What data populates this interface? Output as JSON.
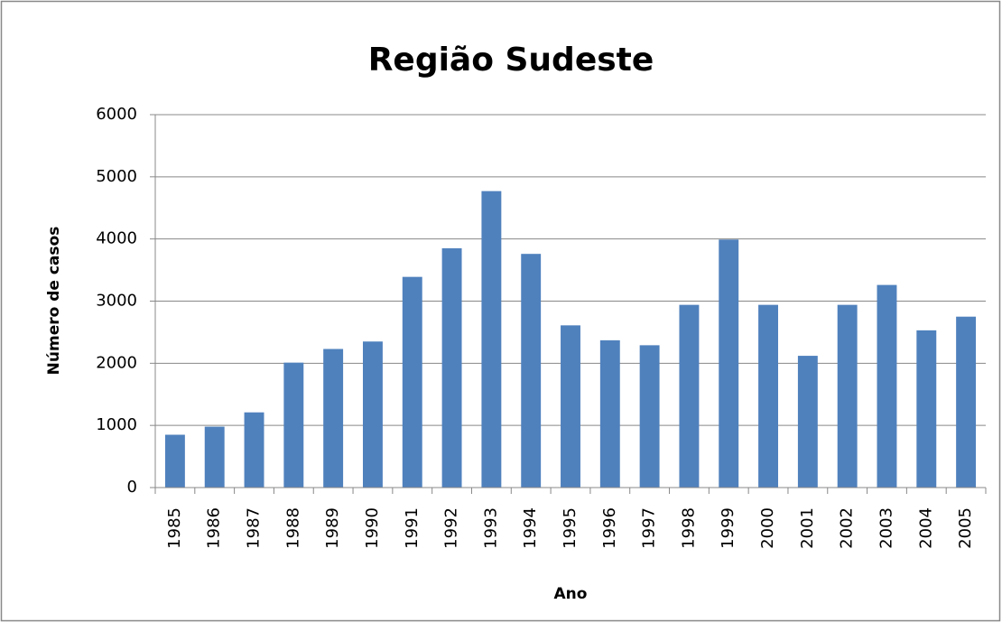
{
  "chart_data": {
    "type": "bar",
    "title": "Região Sudeste",
    "x_label": "Ano",
    "y_label": "Número de casos",
    "categories": [
      "1985",
      "1986",
      "1987",
      "1988",
      "1989",
      "1990",
      "1991",
      "1992",
      "1993",
      "1994",
      "1995",
      "1996",
      "1997",
      "1998",
      "1999",
      "2000",
      "2001",
      "2002",
      "2003",
      "2004",
      "2005"
    ],
    "values": [
      850,
      980,
      1210,
      2010,
      2230,
      2350,
      3390,
      3850,
      4770,
      3760,
      2610,
      2370,
      2290,
      2940,
      3990,
      2940,
      2120,
      2940,
      3260,
      2530,
      2750
    ],
    "color": "#4f81bd",
    "ylim": [
      0,
      6000
    ],
    "yticks": [
      0,
      1000,
      2000,
      3000,
      4000,
      5000,
      6000
    ],
    "grid": true
  }
}
